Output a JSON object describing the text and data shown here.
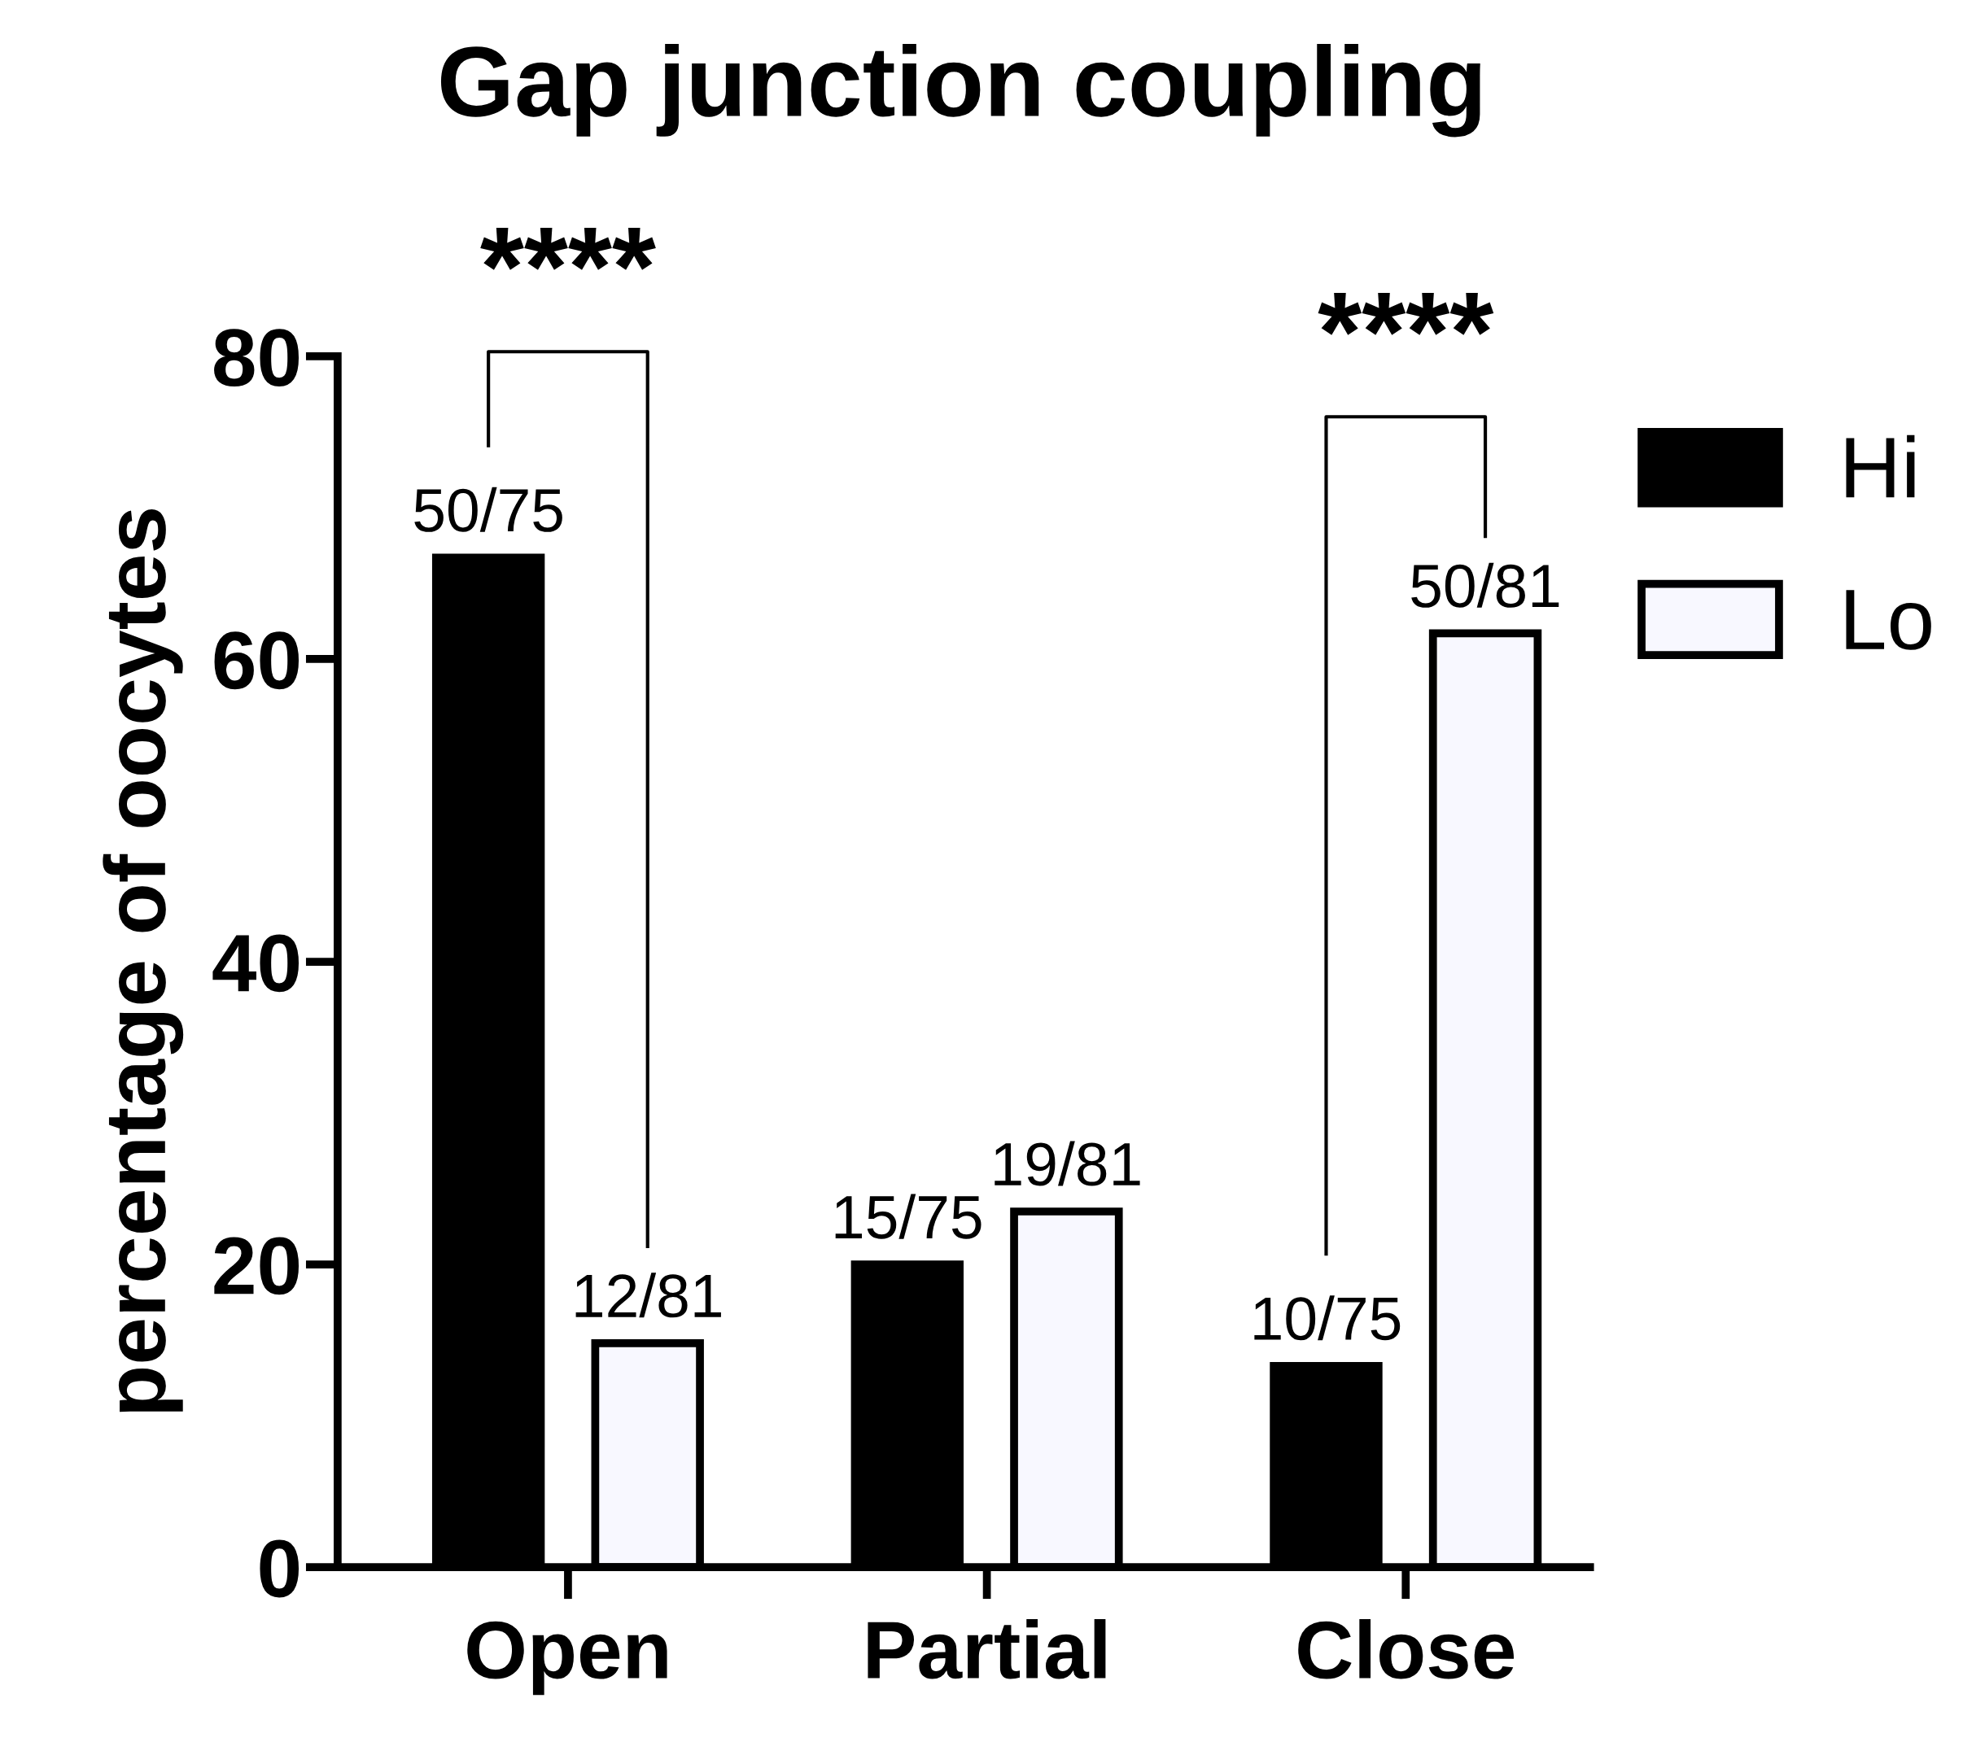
{
  "chart_data": {
    "type": "bar",
    "title": "Gap junction coupling",
    "ylabel": "percentage of oocytes",
    "categories": [
      "Open",
      "Partial",
      "Close"
    ],
    "series": [
      {
        "name": "Hi",
        "color": "#000000",
        "values": [
          66.7,
          20,
          13.3
        ],
        "value_labels": [
          "50/75",
          "15/75",
          "10/75"
        ]
      },
      {
        "name": "Lo",
        "color": "#f8f8ff",
        "values": [
          14.8,
          23.5,
          61.7
        ],
        "value_labels": [
          "12/81",
          "19/81",
          "50/81"
        ]
      }
    ],
    "ylim": [
      0,
      80
    ],
    "yticks": [
      0,
      20,
      40,
      60,
      80
    ],
    "grid": false,
    "legend": "top right",
    "annotations": [
      "****",
      "****"
    ]
  }
}
